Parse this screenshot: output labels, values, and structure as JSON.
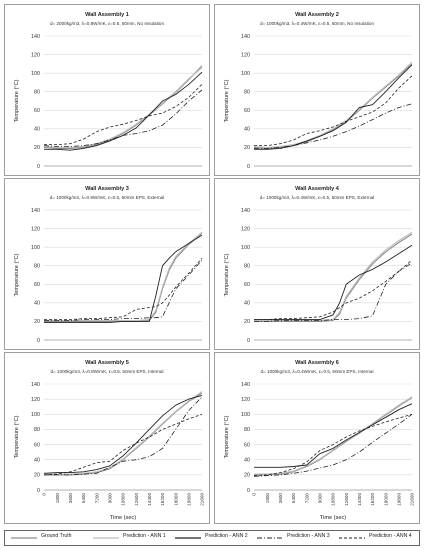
{
  "chart_data": [
    {
      "type": "line",
      "title": "Wall Assembly 1",
      "subtitle": "d= 2000kg/m3, λ=0.8W/mK, ε=0.5, 50mm, No Insulation",
      "xlabel": "",
      "ylabel": "Temperature (°C)",
      "xlim": [
        0,
        21600
      ],
      "ylim": [
        0,
        140
      ],
      "x_ticks": [],
      "y_ticks": [
        0,
        20,
        40,
        60,
        80,
        100,
        120,
        140
      ],
      "x": [
        0,
        1800,
        3600,
        5400,
        7200,
        9000,
        10800,
        12600,
        14400,
        16200,
        18000,
        19800,
        21600
      ],
      "series": [
        {
          "name": "Ground Truth",
          "values": [
            20,
            19,
            19,
            20,
            23,
            28,
            35,
            44,
            55,
            67,
            79,
            93,
            108
          ]
        },
        {
          "name": "Prediction - ANN 1",
          "values": [
            21,
            20,
            20,
            21,
            24,
            29,
            36,
            45,
            56,
            68,
            80,
            94,
            106
          ]
        },
        {
          "name": "Prediction - ANN 2",
          "values": [
            18,
            18,
            17,
            19,
            22,
            27,
            33,
            41,
            55,
            70,
            77,
            88,
            101
          ]
        },
        {
          "name": "Prediction - ANN 3",
          "values": [
            22,
            21,
            21,
            22,
            24,
            28,
            33,
            35,
            38,
            44,
            56,
            70,
            82
          ]
        },
        {
          "name": "Prediction - ANN 4",
          "values": [
            23,
            23,
            24,
            29,
            37,
            42,
            45,
            49,
            54,
            57,
            64,
            74,
            88
          ]
        }
      ]
    },
    {
      "type": "line",
      "title": "Wall Assembly 2",
      "subtitle": "d= 1000kg/m3, λ=0.4W/mK, ε=0.5, 50mm, No Insulation",
      "xlabel": "",
      "ylabel": "Temperature (°C)",
      "xlim": [
        0,
        21600
      ],
      "ylim": [
        0,
        140
      ],
      "x_ticks": [],
      "y_ticks": [
        0,
        20,
        40,
        60,
        80,
        100,
        120,
        140
      ],
      "x": [
        0,
        1800,
        3600,
        5400,
        7200,
        9000,
        10800,
        12600,
        14400,
        16200,
        18000,
        19800,
        21600
      ],
      "series": [
        {
          "name": "Ground Truth",
          "values": [
            20,
            19,
            20,
            22,
            26,
            32,
            39,
            48,
            60,
            73,
            85,
            97,
            110
          ]
        },
        {
          "name": "Prediction - ANN 1",
          "values": [
            21,
            20,
            21,
            23,
            27,
            33,
            40,
            49,
            61,
            74,
            86,
            98,
            112
          ]
        },
        {
          "name": "Prediction - ANN 2",
          "values": [
            18,
            18,
            19,
            22,
            27,
            32,
            38,
            47,
            63,
            66,
            80,
            95,
            109
          ]
        },
        {
          "name": "Prediction - ANN 3",
          "values": [
            19,
            19,
            20,
            22,
            25,
            28,
            32,
            37,
            43,
            50,
            57,
            63,
            67
          ]
        },
        {
          "name": "Prediction - ANN 4",
          "values": [
            22,
            22,
            24,
            28,
            35,
            38,
            42,
            48,
            53,
            58,
            68,
            84,
            97
          ]
        }
      ]
    },
    {
      "type": "line",
      "title": "Wall Assembly 3",
      "subtitle": "d= 1000kg/m3, λ=0.8W/mK, ε=0.5, 50mm EPS, External",
      "xlabel": "",
      "ylabel": "Temperature (°C)",
      "xlim": [
        0,
        21600
      ],
      "ylim": [
        0,
        140
      ],
      "x_ticks": [],
      "y_ticks": [
        0,
        20,
        40,
        60,
        80,
        100,
        120,
        140
      ],
      "x": [
        0,
        1800,
        3600,
        5400,
        7200,
        9000,
        10800,
        12600,
        14400,
        15300,
        16200,
        17100,
        18000,
        19800,
        21600
      ],
      "series": [
        {
          "name": "Ground Truth",
          "values": [
            20,
            20,
            20,
            20,
            20,
            20,
            20,
            20,
            21,
            30,
            55,
            75,
            88,
            103,
            115
          ]
        },
        {
          "name": "Prediction - ANN 1",
          "values": [
            21,
            21,
            21,
            21,
            21,
            21,
            21,
            21,
            22,
            32,
            57,
            77,
            90,
            104,
            116
          ]
        },
        {
          "name": "Prediction - ANN 2",
          "values": [
            19,
            19,
            19,
            19,
            19,
            19,
            20,
            20,
            20,
            48,
            80,
            88,
            95,
            104,
            113
          ]
        },
        {
          "name": "Prediction - ANN 3",
          "values": [
            21,
            21,
            21,
            22,
            22,
            22,
            23,
            23,
            24,
            24,
            25,
            40,
            55,
            70,
            86
          ]
        },
        {
          "name": "Prediction - ANN 4",
          "values": [
            22,
            22,
            22,
            23,
            23,
            24,
            25,
            33,
            35,
            36,
            40,
            48,
            57,
            72,
            88
          ]
        }
      ]
    },
    {
      "type": "line",
      "title": "Wall Assembly 4",
      "subtitle": "d= 1000kg/m3, λ=0.4W/mK, ε=0.5, 50mm EPS, External",
      "xlabel": "",
      "ylabel": "Temperature (°C)",
      "xlim": [
        0,
        21600
      ],
      "ylim": [
        0,
        140
      ],
      "x_ticks": [],
      "y_ticks": [
        0,
        20,
        40,
        60,
        80,
        100,
        120,
        140
      ],
      "x": [
        0,
        1800,
        3600,
        5400,
        7200,
        9000,
        10800,
        11700,
        12600,
        14400,
        16200,
        18000,
        19800,
        21600
      ],
      "series": [
        {
          "name": "Ground Truth",
          "values": [
            20,
            20,
            20,
            20,
            20,
            20,
            21,
            28,
            45,
            65,
            82,
            95,
            105,
            114
          ]
        },
        {
          "name": "Prediction - ANN 1",
          "values": [
            21,
            21,
            21,
            21,
            21,
            21,
            22,
            30,
            47,
            67,
            84,
            97,
            107,
            116
          ]
        },
        {
          "name": "Prediction - ANN 2",
          "values": [
            22,
            22,
            22,
            22,
            22,
            22,
            27,
            40,
            60,
            70,
            76,
            84,
            93,
            102
          ]
        },
        {
          "name": "Prediction - ANN 3",
          "values": [
            20,
            20,
            21,
            21,
            21,
            21,
            22,
            22,
            22,
            23,
            26,
            60,
            74,
            83
          ]
        },
        {
          "name": "Prediction - ANN 4",
          "values": [
            22,
            22,
            23,
            23,
            24,
            25,
            30,
            35,
            40,
            45,
            53,
            63,
            74,
            86
          ]
        }
      ]
    },
    {
      "type": "line",
      "title": "Wall Assembly 5",
      "subtitle": "d= 1000kg/m3, λ=0.8W/mK, ε=0.5, 50mm EPS, Internal",
      "xlabel": "Time (sec)",
      "ylabel": "Temperature (°C)",
      "xlim": [
        0,
        21600
      ],
      "ylim": [
        0,
        140
      ],
      "x_ticks": [
        0,
        1800,
        3600,
        5400,
        7200,
        9000,
        10800,
        12600,
        14400,
        16200,
        18000,
        19800,
        21600
      ],
      "y_ticks": [
        0,
        20,
        40,
        60,
        80,
        100,
        120,
        140
      ],
      "x": [
        0,
        1800,
        3600,
        5400,
        7200,
        9000,
        10800,
        12600,
        14400,
        16200,
        18000,
        19800,
        21600
      ],
      "series": [
        {
          "name": "Ground Truth",
          "values": [
            20,
            20,
            20,
            21,
            23,
            28,
            40,
            55,
            70,
            87,
            103,
            117,
            128
          ]
        },
        {
          "name": "Prediction - ANN 1",
          "values": [
            21,
            21,
            21,
            22,
            24,
            29,
            41,
            56,
            71,
            88,
            104,
            118,
            130
          ]
        },
        {
          "name": "Prediction - ANN 2",
          "values": [
            22,
            23,
            23,
            24,
            27,
            32,
            45,
            62,
            80,
            98,
            112,
            120,
            125
          ]
        },
        {
          "name": "Prediction - ANN 3",
          "values": [
            20,
            20,
            20,
            21,
            22,
            30,
            38,
            40,
            44,
            55,
            80,
            105,
            123
          ]
        },
        {
          "name": "Prediction - ANN 4",
          "values": [
            20,
            21,
            24,
            30,
            36,
            38,
            52,
            62,
            70,
            80,
            87,
            94,
            100
          ]
        }
      ]
    },
    {
      "type": "line",
      "title": "Wall Assembly 6",
      "subtitle": "d= 1000kg/m3, λ=0.4W/mK, ε=0.5, 50mm EPS, Internal",
      "xlabel": "Time (sec)",
      "ylabel": "Temperature (°C)",
      "xlim": [
        0,
        21600
      ],
      "ylim": [
        0,
        140
      ],
      "x_ticks": [
        0,
        1800,
        3600,
        5400,
        7200,
        9000,
        10800,
        12600,
        14400,
        16200,
        18000,
        19800,
        21600
      ],
      "y_ticks": [
        0,
        20,
        40,
        60,
        80,
        100,
        120,
        140
      ],
      "x": [
        0,
        1800,
        3600,
        5400,
        7200,
        9000,
        10800,
        12600,
        14400,
        16200,
        18000,
        19800,
        21600
      ],
      "series": [
        {
          "name": "Ground Truth",
          "values": [
            20,
            20,
            21,
            24,
            31,
            40,
            52,
            64,
            75,
            87,
            99,
            111,
            122
          ]
        },
        {
          "name": "Prediction - ANN 1",
          "values": [
            21,
            21,
            22,
            25,
            32,
            41,
            53,
            65,
            76,
            88,
            100,
            112,
            123
          ]
        },
        {
          "name": "Prediction - ANN 2",
          "values": [
            30,
            30,
            30,
            31,
            33,
            48,
            55,
            66,
            76,
            86,
            96,
            106,
            114
          ]
        },
        {
          "name": "Prediction - ANN 3",
          "values": [
            18,
            19,
            20,
            22,
            25,
            29,
            33,
            40,
            50,
            63,
            75,
            87,
            100
          ]
        },
        {
          "name": "Prediction - ANN 4",
          "values": [
            19,
            20,
            23,
            28,
            37,
            52,
            60,
            70,
            78,
            84,
            90,
            95,
            100
          ]
        }
      ]
    }
  ],
  "legend": [
    {
      "label": "Ground Truth",
      "style": "solid",
      "color": "#8c8c8c"
    },
    {
      "label": "Prediction - ANN 1",
      "style": "solid",
      "color": "#bdbdbd"
    },
    {
      "label": "Prediction - ANN 2",
      "style": "solid",
      "color": "#222222"
    },
    {
      "label": "Prediction - ANN 3",
      "style": "dashdot",
      "color": "#222222"
    },
    {
      "label": "Prediction - ANN 4",
      "style": "dashed",
      "color": "#222222"
    }
  ]
}
